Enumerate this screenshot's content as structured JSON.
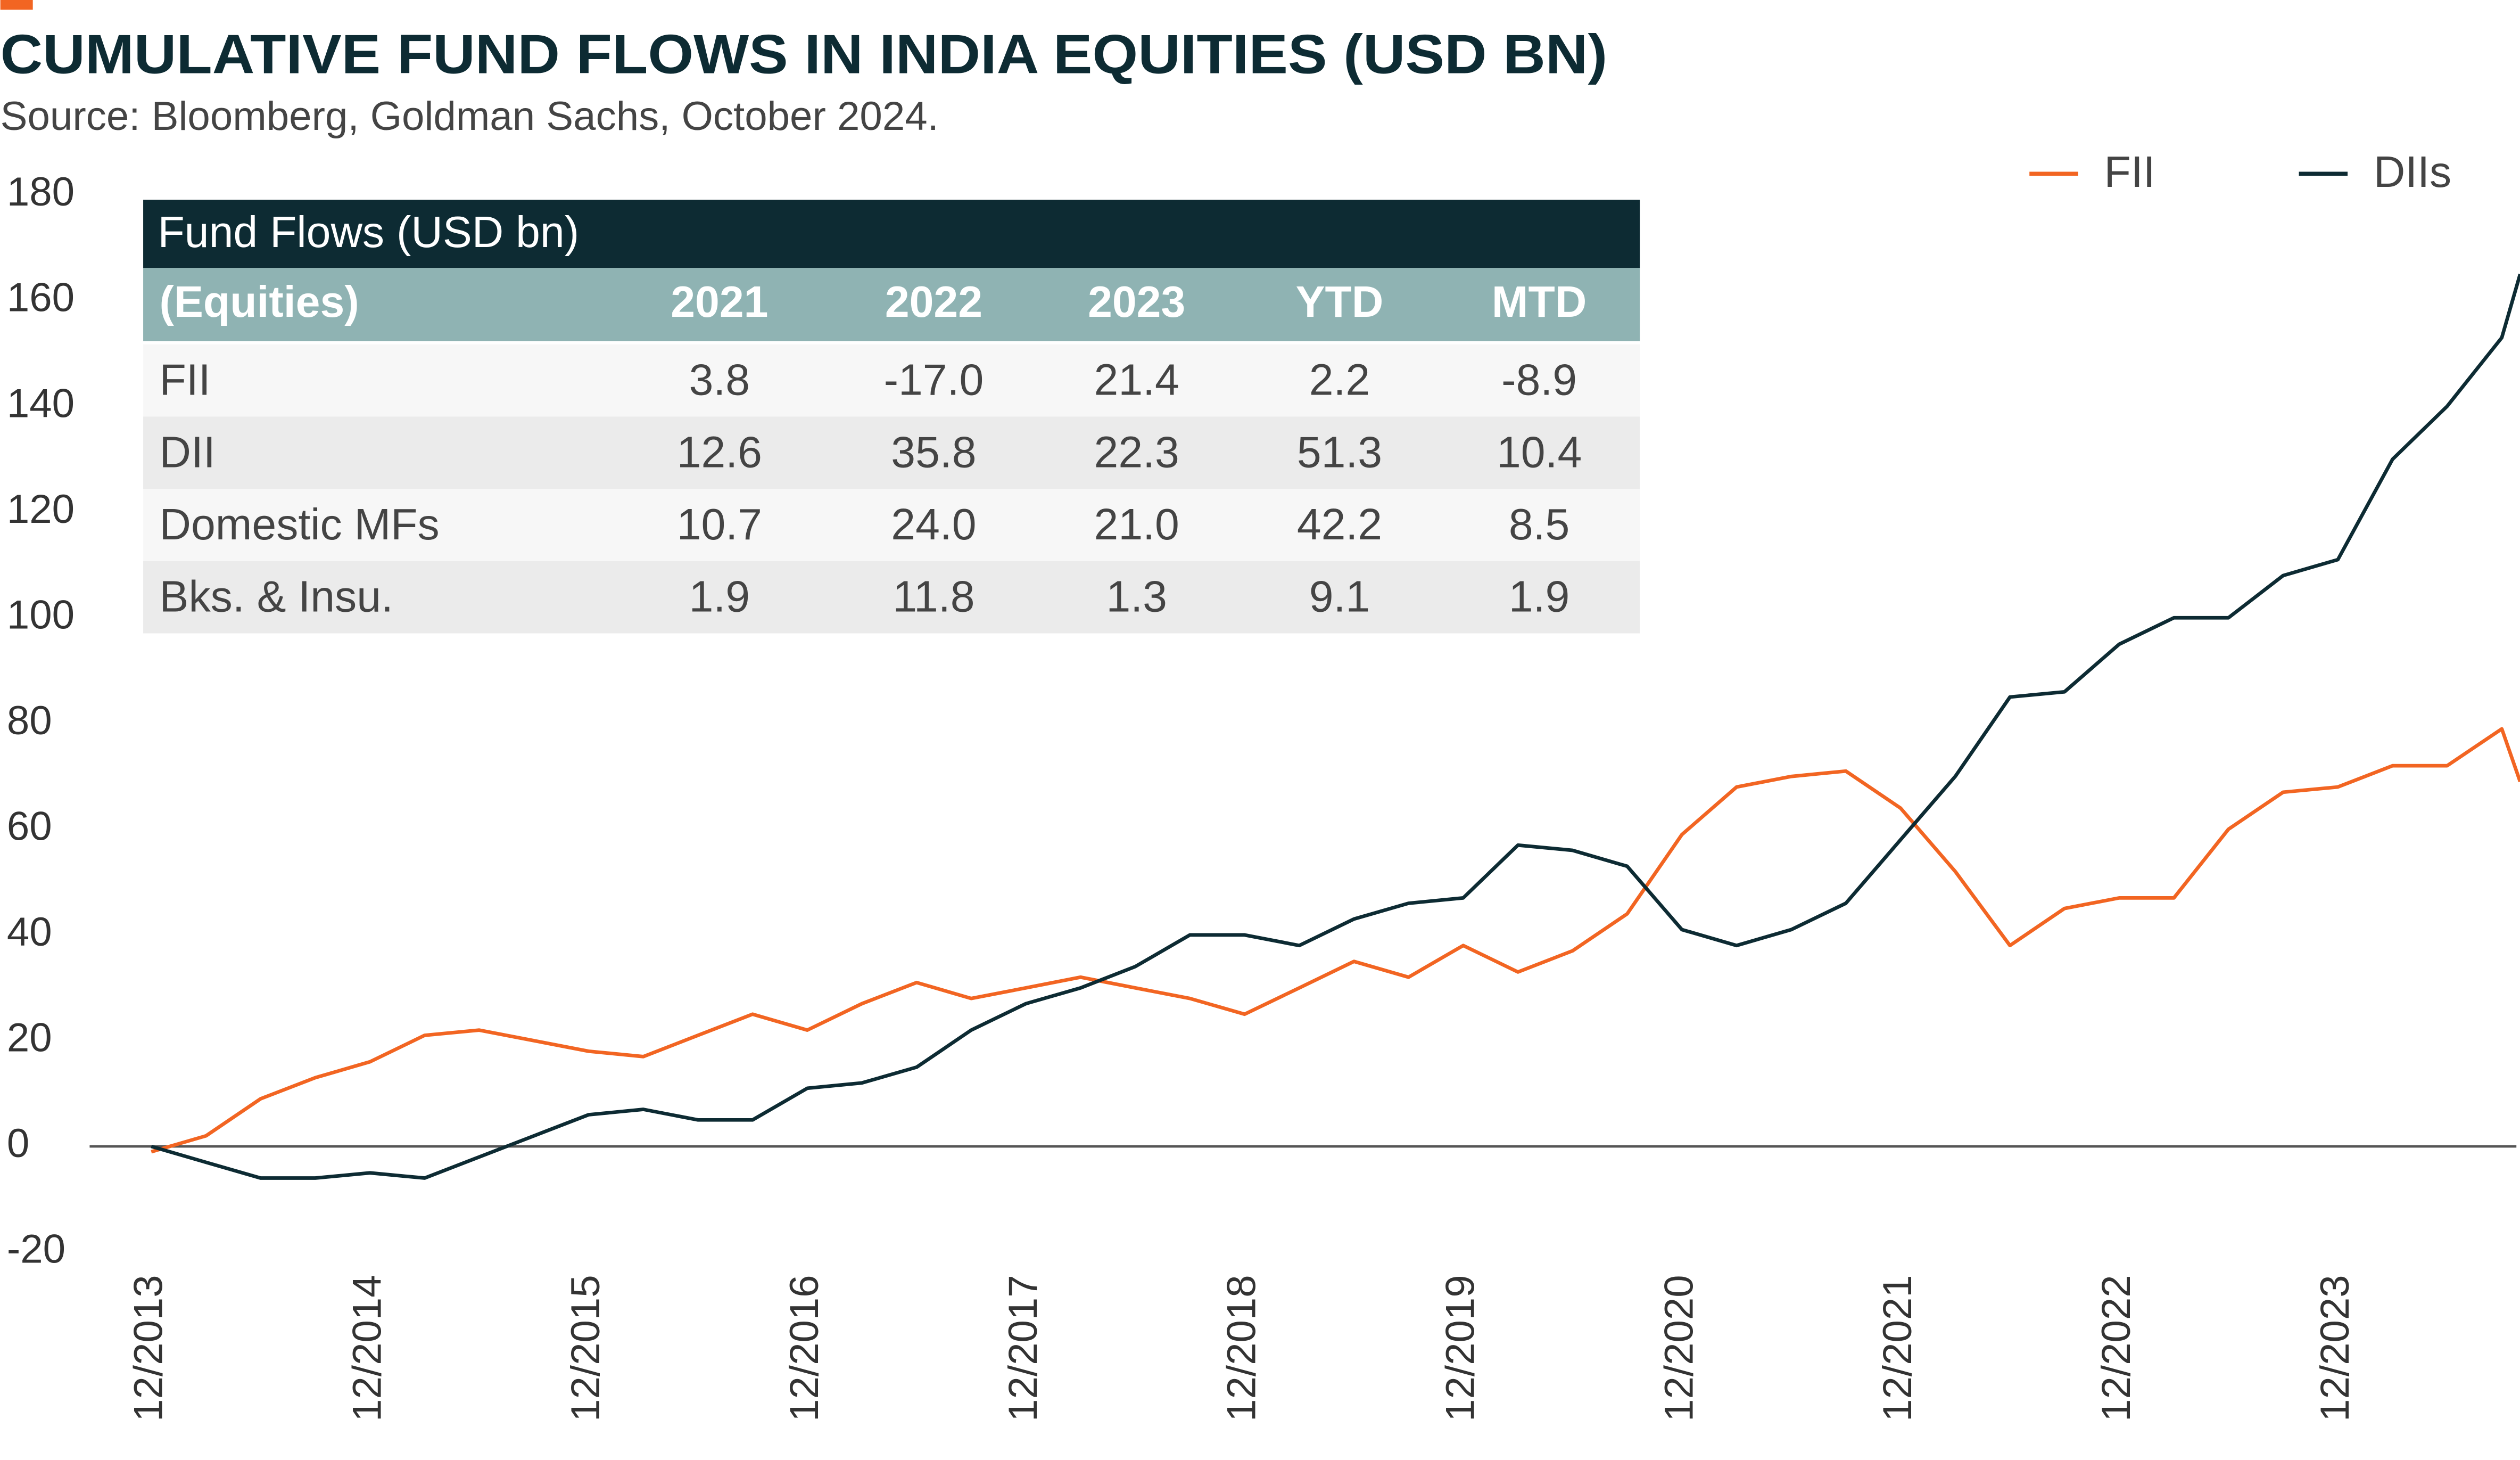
{
  "chart_data": {
    "type": "line",
    "title": "CUMULATIVE FUND FLOWS IN INDIA EQUITIES (USD BN)",
    "subtitle": "Source: Bloomberg, Goldman Sachs, October 2024.",
    "x": [
      "12/2013",
      "03/2014",
      "06/2014",
      "09/2014",
      "12/2014",
      "03/2015",
      "06/2015",
      "09/2015",
      "12/2015",
      "03/2016",
      "06/2016",
      "09/2016",
      "12/2016",
      "03/2017",
      "06/2017",
      "09/2017",
      "12/2017",
      "03/2018",
      "06/2018",
      "09/2018",
      "12/2018",
      "03/2019",
      "06/2019",
      "09/2019",
      "12/2019",
      "03/2020",
      "06/2020",
      "09/2020",
      "12/2020",
      "03/2021",
      "06/2021",
      "09/2021",
      "12/2021",
      "03/2022",
      "06/2022",
      "09/2022",
      "12/2022",
      "03/2023",
      "06/2023",
      "09/2023",
      "12/2023",
      "03/2024",
      "06/2024",
      "09/2024",
      "10/2024"
    ],
    "xticks": [
      "12/2013",
      "12/2014",
      "12/2015",
      "12/2016",
      "12/2017",
      "12/2018",
      "12/2019",
      "12/2020",
      "12/2021",
      "12/2022",
      "12/2023"
    ],
    "series": [
      {
        "name": "FII",
        "color": "#f26522",
        "values": [
          -1,
          2,
          9,
          13,
          16,
          21,
          22,
          20,
          18,
          17,
          21,
          25,
          22,
          27,
          31,
          28,
          30,
          32,
          30,
          28,
          25,
          30,
          35,
          32,
          38,
          33,
          37,
          44,
          59,
          68,
          70,
          71,
          64,
          52,
          38,
          45,
          47,
          47,
          60,
          67,
          68,
          72,
          72,
          79,
          69
        ]
      },
      {
        "name": "DIIs",
        "color": "#0d2b33",
        "values": [
          0,
          -3,
          -6,
          -6,
          -5,
          -6,
          -2,
          2,
          6,
          7,
          5,
          5,
          11,
          12,
          15,
          22,
          27,
          30,
          34,
          40,
          40,
          38,
          43,
          46,
          47,
          57,
          56,
          53,
          41,
          38,
          41,
          46,
          58,
          70,
          85,
          86,
          95,
          100,
          100,
          108,
          111,
          130,
          140,
          153,
          165
        ]
      }
    ],
    "ylim": [
      -20,
      180
    ],
    "yticks": [
      -20,
      0,
      20,
      40,
      60,
      80,
      100,
      120,
      140,
      160,
      180
    ],
    "legend": "top-right"
  },
  "table": {
    "title": "Fund Flows (USD bn)",
    "header": [
      "(Equities)",
      "2021",
      "2022",
      "2023",
      "YTD",
      "MTD"
    ],
    "rows": [
      [
        "FII",
        "3.8",
        "-17.0",
        "21.4",
        "2.2",
        "-8.9"
      ],
      [
        "DII",
        "12.6",
        "35.8",
        "22.3",
        "51.3",
        "10.4"
      ],
      [
        "Domestic MFs",
        "10.7",
        "24.0",
        "21.0",
        "42.2",
        "8.5"
      ],
      [
        "Bks. & Insu.",
        "1.9",
        "11.8",
        "1.3",
        "9.1",
        "1.9"
      ]
    ]
  }
}
